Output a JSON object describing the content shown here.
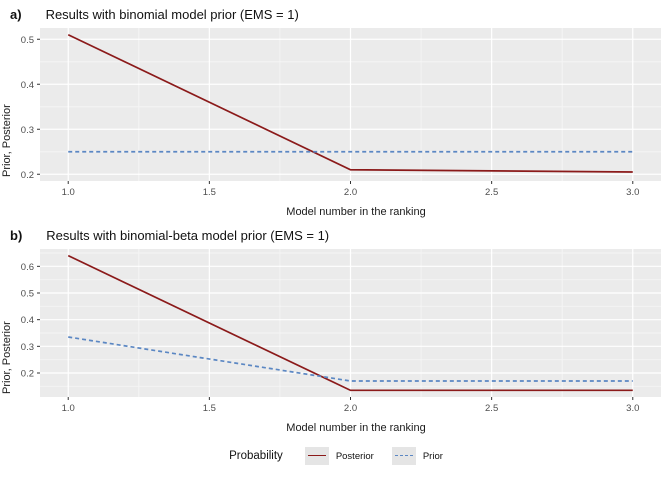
{
  "legend": {
    "title": "Probability",
    "items": [
      {
        "label": "Posterior",
        "color": "#8B1A1A",
        "dash": "solid"
      },
      {
        "label": "Prior",
        "color": "#5B87C3",
        "dash": "dashed"
      }
    ]
  },
  "chart_data": [
    {
      "type": "line",
      "tag": "a)",
      "title": "Results with binomial model prior (EMS = 1)",
      "xlabel": "Model number in the ranking",
      "ylabel": "Prior, Posterior",
      "x": [
        1,
        2,
        3
      ],
      "series": [
        {
          "name": "Posterior",
          "values": [
            0.51,
            0.21,
            0.205
          ],
          "color": "#8B1A1A",
          "linetype": "solid"
        },
        {
          "name": "Prior",
          "values": [
            0.25,
            0.25,
            0.25
          ],
          "color": "#5B87C3",
          "linetype": "dashed"
        }
      ],
      "xlim": [
        0.9,
        3.1
      ],
      "ylim": [
        0.185,
        0.525
      ],
      "xticks": [
        1.0,
        1.5,
        2.0,
        2.5,
        3.0
      ],
      "yticks": [
        0.2,
        0.3,
        0.4,
        0.5
      ],
      "xminor": [
        1.25,
        1.75,
        2.25,
        2.75
      ],
      "yminor": [
        0.25,
        0.35,
        0.45
      ],
      "grid": true,
      "panel_background": "#EBEBEB",
      "legend_position": "none"
    },
    {
      "type": "line",
      "tag": "b)",
      "title": "Results with binomial-beta model prior (EMS = 1)",
      "xlabel": "Model number in the ranking",
      "ylabel": "Prior, Posterior",
      "x": [
        1,
        2,
        3
      ],
      "series": [
        {
          "name": "Posterior",
          "values": [
            0.64,
            0.135,
            0.135
          ],
          "color": "#8B1A1A",
          "linetype": "solid"
        },
        {
          "name": "Prior",
          "values": [
            0.335,
            0.17,
            0.17
          ],
          "color": "#5B87C3",
          "linetype": "dashed"
        }
      ],
      "xlim": [
        0.9,
        3.1
      ],
      "ylim": [
        0.11,
        0.665
      ],
      "xticks": [
        1.0,
        1.5,
        2.0,
        2.5,
        3.0
      ],
      "yticks": [
        0.2,
        0.3,
        0.4,
        0.5,
        0.6
      ],
      "xminor": [
        1.25,
        1.75,
        2.25,
        2.75
      ],
      "yminor": [
        0.15,
        0.25,
        0.35,
        0.45,
        0.55,
        0.65
      ],
      "grid": true,
      "panel_background": "#EBEBEB",
      "legend_position": "none"
    }
  ]
}
